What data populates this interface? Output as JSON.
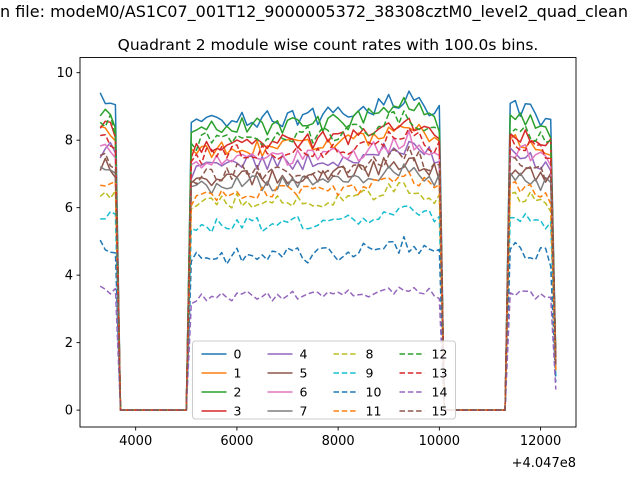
{
  "window": {
    "filename_line": "n file: modeM0/AS1C07_001T12_9000005372_38308cztM0_level2_quad_clean"
  },
  "chart_data": {
    "type": "line",
    "title": "Quadrant 2 module wise count rates with 100.0s bins.",
    "xlabel": "",
    "ylabel": "",
    "x_offset_label": "+4.047e8",
    "xlim": [
      2900,
      12700
    ],
    "ylim": [
      -0.5,
      10.45
    ],
    "xticks": [
      4000,
      6000,
      8000,
      10000,
      12000
    ],
    "yticks": [
      0,
      2,
      4,
      6,
      8,
      10
    ],
    "bin_seconds": 100,
    "x_start": 3300,
    "x_end": 12300,
    "grid": false,
    "on_intervals": [
      [
        3300,
        3600
      ],
      [
        5060,
        10060
      ],
      [
        11320,
        12260
      ]
    ],
    "end_decay": {
      "x": 12300,
      "fraction": 0.18
    },
    "profile": [
      [
        3300,
        1.05
      ],
      [
        3450,
        1.06
      ],
      [
        3600,
        1.02
      ],
      [
        5060,
        0.96
      ],
      [
        5500,
        0.985
      ],
      [
        6000,
        1.0
      ],
      [
        6500,
        0.99
      ],
      [
        7000,
        1.0
      ],
      [
        7500,
        1.0
      ],
      [
        8000,
        1.01
      ],
      [
        8500,
        1.02
      ],
      [
        9000,
        1.05
      ],
      [
        9400,
        1.07
      ],
      [
        9800,
        1.03
      ],
      [
        10060,
        1.0
      ],
      [
        11320,
        1.03
      ],
      [
        11700,
        1.02
      ],
      [
        12000,
        1.0
      ],
      [
        12260,
        0.97
      ]
    ],
    "legend": {
      "ncol": 4,
      "position": "lower center"
    },
    "series": [
      {
        "label": "0",
        "color": "#1f77b4",
        "dash": "solid",
        "level": 8.7,
        "noise": 0.28
      },
      {
        "label": "1",
        "color": "#ff7f0e",
        "dash": "solid",
        "level": 7.85,
        "noise": 0.25
      },
      {
        "label": "2",
        "color": "#2ca02c",
        "dash": "solid",
        "level": 8.45,
        "noise": 0.27
      },
      {
        "label": "3",
        "color": "#d62728",
        "dash": "solid",
        "level": 8.0,
        "noise": 0.25
      },
      {
        "label": "4",
        "color": "#9467bd",
        "dash": "solid",
        "level": 7.35,
        "noise": 0.25
      },
      {
        "label": "5",
        "color": "#8c564b",
        "dash": "solid",
        "level": 6.95,
        "noise": 0.24
      },
      {
        "label": "6",
        "color": "#e377c2",
        "dash": "solid",
        "level": 7.5,
        "noise": 0.25
      },
      {
        "label": "7",
        "color": "#7f7f7f",
        "dash": "solid",
        "level": 6.75,
        "noise": 0.24
      },
      {
        "label": "8",
        "color": "#bcbd22",
        "dash": "dashed",
        "level": 6.2,
        "noise": 0.22
      },
      {
        "label": "9",
        "color": "#17becf",
        "dash": "dashed",
        "level": 5.55,
        "noise": 0.2
      },
      {
        "label": "10",
        "color": "#1f77b4",
        "dash": "dashed",
        "level": 4.6,
        "noise": 0.26
      },
      {
        "label": "11",
        "color": "#ff7f0e",
        "dash": "dashed",
        "level": 6.45,
        "noise": 0.22
      },
      {
        "label": "12",
        "color": "#2ca02c",
        "dash": "dashed",
        "level": 8.15,
        "noise": 0.26
      },
      {
        "label": "13",
        "color": "#d62728",
        "dash": "dashed",
        "level": 7.7,
        "noise": 0.25
      },
      {
        "label": "14",
        "color": "#9467bd",
        "dash": "dashed",
        "level": 3.4,
        "noise": 0.15
      },
      {
        "label": "15",
        "color": "#8c564b",
        "dash": "dashed",
        "level": 7.1,
        "noise": 0.24
      }
    ]
  }
}
